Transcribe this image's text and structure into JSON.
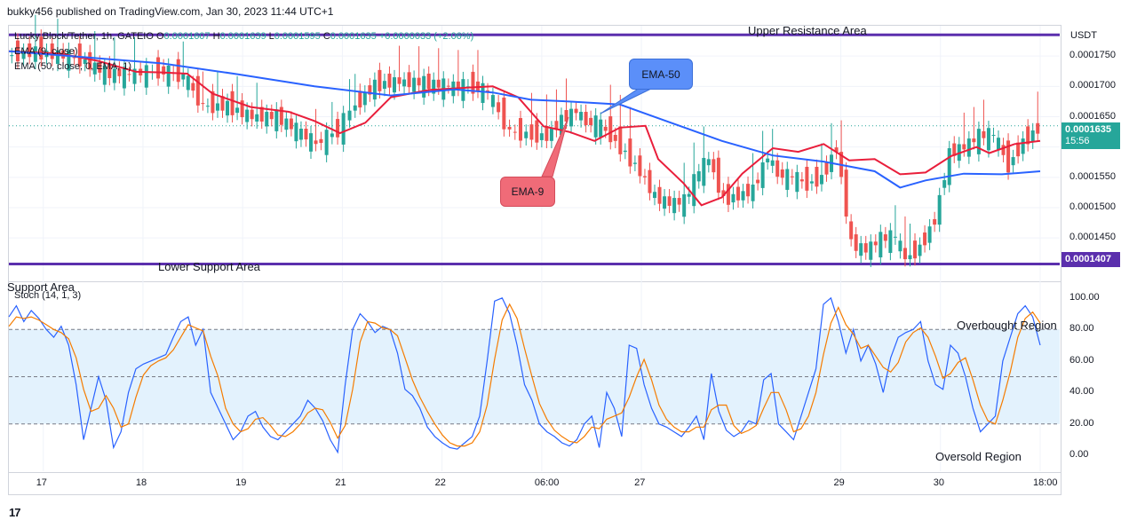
{
  "header": {
    "publisher": "bukky456 published on TradingView.com, Jan 30, 2023 11:44 UTC+1"
  },
  "legend": {
    "symbol": "Lucky Block/Tether, 1h, GATEIO",
    "open_label": "O",
    "open": "0.0001607",
    "high_label": "H",
    "high": "0.0001639",
    "low_label": "L",
    "low": "0.0001595",
    "close_label": "C",
    "close": "0.0001635",
    "change": "+0.0000033 (+2.06%)",
    "ema9": "EMA (9, close)",
    "ema50": "EMA (50, close, 0, EMA, 1)",
    "stoch": "Stoch (14, 1, 3)"
  },
  "annotations": {
    "upper": "Upper Resistance Area",
    "lower": "Lower Support Area",
    "support_cut": "Support Area",
    "ema50_callout": "EMA-50",
    "ema9_callout": "EMA-9",
    "overbought": "Overbought Region",
    "oversold": "Oversold Region"
  },
  "price_axis": {
    "currency": "USDT",
    "ticks": [
      "0.0001750",
      "0.0001700",
      "0.0001650",
      "0.0001600",
      "0.0001550",
      "0.0001500",
      "0.0001450"
    ],
    "tick_values": [
      0.000175,
      0.00017,
      0.000165,
      0.00016,
      0.000155,
      0.00015,
      0.000145
    ],
    "last_price": "0.0001635",
    "countdown": "15:56",
    "support_price": "0.0001407",
    "support_value": 0.0001407,
    "resistance_value": 0.0001785
  },
  "stoch_axis": {
    "ticks": [
      "100.00",
      "80.00",
      "60.00",
      "40.00",
      "20.00",
      "0.00"
    ],
    "tick_values": [
      100,
      80,
      60,
      40,
      20,
      0
    ],
    "overbought": 80,
    "middle": 50,
    "oversold": 20
  },
  "time_axis": {
    "labels": [
      "17",
      "18",
      "19",
      "21",
      "22",
      "06:00",
      "27",
      "29",
      "30",
      "18:00"
    ],
    "label_index": [
      10,
      39,
      68,
      97,
      126,
      155,
      184,
      242,
      271,
      300
    ]
  },
  "colors": {
    "up": "#26a69a",
    "down": "#ef5350",
    "ema9": "#e91e3b",
    "ema50": "#2962ff",
    "level": "#5b2fad",
    "stoch_k": "#2962ff",
    "stoch_d": "#f57c00",
    "band": "#e3f2fd",
    "callout_ema50": "#5b8ff9",
    "callout_ema9": "#f06b78"
  },
  "chart_data": [
    {
      "type": "candlestick",
      "title": "Lucky Block/Tether, 1h, GATEIO",
      "ylabel": "USDT",
      "ylim": [
        0.000138,
        0.00018
      ],
      "x_index_range": [
        0,
        310
      ],
      "last_close": 0.0001635,
      "levels": [
        {
          "name": "Upper Resistance Area",
          "value": 0.0001785
        },
        {
          "name": "Lower Support Area",
          "value": 0.0001407
        }
      ],
      "series": [
        {
          "name": "EMA (9, close)",
          "color": "#e91e3b",
          "points": [
            [
              0,
              0.0001758
            ],
            [
              20,
              0.0001754
            ],
            [
              35,
              0.0001742
            ],
            [
              50,
              0.0001724
            ],
            [
              60,
              0.0001723
            ],
            [
              70,
              0.0001721
            ],
            [
              80,
              0.0001688
            ],
            [
              95,
              0.0001666
            ],
            [
              110,
              0.0001658
            ],
            [
              120,
              0.0001643
            ],
            [
              130,
              0.0001623
            ],
            [
              140,
              0.000164
            ],
            [
              150,
              0.0001682
            ],
            [
              165,
              0.0001694
            ],
            [
              180,
              0.0001698
            ],
            [
              190,
              0.00017
            ],
            [
              200,
              0.0001682
            ],
            [
              210,
              0.0001634
            ],
            [
              220,
              0.0001625
            ],
            [
              230,
              0.000161
            ],
            [
              240,
              0.0001632
            ],
            [
              250,
              0.0001635
            ],
            [
              255,
              0.000158
            ],
            [
              265,
              0.000154
            ],
            [
              272,
              0.0001504
            ],
            [
              280,
              0.0001517
            ],
            [
              288,
              0.0001556
            ],
            [
              300,
              0.0001598
            ],
            [
              310,
              0.0001592
            ],
            [
              320,
              0.0001605
            ],
            [
              330,
              0.0001578
            ],
            [
              340,
              0.000158
            ],
            [
              350,
              0.0001555
            ],
            [
              360,
              0.0001558
            ],
            [
              370,
              0.0001585
            ],
            [
              380,
              0.00016
            ],
            [
              385,
              0.000159
            ],
            [
              395,
              0.0001605
            ],
            [
              405,
              0.000161
            ]
          ]
        },
        {
          "name": "EMA (50, close, 0, EMA, 1)",
          "color": "#2962ff",
          "points": [
            [
              0,
              0.0001758
            ],
            [
              30,
              0.0001748
            ],
            [
              60,
              0.0001738
            ],
            [
              90,
              0.000172
            ],
            [
              120,
              0.00017
            ],
            [
              150,
              0.0001685
            ],
            [
              175,
              0.0001695
            ],
            [
              190,
              0.000169
            ],
            [
              205,
              0.0001678
            ],
            [
              220,
              0.0001675
            ],
            [
              240,
              0.000167
            ],
            [
              260,
              0.000164
            ],
            [
              280,
              0.000161
            ],
            [
              300,
              0.0001586
            ],
            [
              320,
              0.0001576
            ],
            [
              340,
              0.000156
            ],
            [
              350,
              0.0001533
            ],
            [
              360,
              0.0001545
            ],
            [
              375,
              0.0001556
            ],
            [
              390,
              0.0001555
            ],
            [
              405,
              0.000156
            ]
          ]
        },
        {
          "name": "price",
          "color": "#26a69a",
          "points": [
            [
              0,
              0.000175
            ],
            [
              12,
              0.0001758
            ],
            [
              30,
              0.0001745
            ],
            [
              40,
              0.0001722
            ],
            [
              50,
              0.000172
            ],
            [
              62,
              0.0001725
            ],
            [
              72,
              0.0001718
            ],
            [
              80,
              0.0001668
            ],
            [
              90,
              0.0001668
            ],
            [
              100,
              0.000165
            ],
            [
              110,
              0.000165
            ],
            [
              118,
              0.0001628
            ],
            [
              126,
              0.0001605
            ],
            [
              135,
              0.0001628
            ],
            [
              140,
              0.000166
            ],
            [
              150,
              0.0001703
            ],
            [
              160,
              0.0001708
            ],
            [
              170,
              0.0001705
            ],
            [
              180,
              0.00017
            ],
            [
              190,
              0.00017
            ],
            [
              196,
              0.000169
            ],
            [
              205,
              0.0001625
            ],
            [
              214,
              0.000162
            ],
            [
              220,
              0.0001618
            ],
            [
              226,
              0.0001645
            ],
            [
              232,
              0.000166
            ],
            [
              236,
              0.000164
            ],
            [
              240,
              0.000164
            ],
            [
              246,
              0.000162
            ],
            [
              252,
              0.000159
            ],
            [
              258,
              0.000156
            ],
            [
              264,
              0.0001518
            ],
            [
              270,
              0.0001507
            ],
            [
              276,
              0.000151
            ],
            [
              282,
              0.000156
            ],
            [
              286,
              0.000158
            ],
            [
              292,
              0.0001515
            ],
            [
              298,
              0.000152
            ],
            [
              304,
              0.000153
            ],
            [
              310,
              0.0001585
            ],
            [
              314,
              0.0001555
            ],
            [
              320,
              0.000155
            ],
            [
              326,
              0.000154
            ],
            [
              332,
              0.000155
            ],
            [
              338,
              0.00016
            ],
            [
              344,
              0.000144
            ],
            [
              350,
              0.000143
            ],
            [
              356,
              0.0001448
            ],
            [
              362,
              0.0001452
            ],
            [
              366,
              0.0001415
            ],
            [
              372,
              0.0001435
            ],
            [
              378,
              0.000148
            ],
            [
              384,
              0.000159
            ],
            [
              390,
              0.00016
            ],
            [
              396,
              0.0001618
            ],
            [
              402,
              0.000162
            ],
            [
              408,
              0.000157
            ],
            [
              414,
              0.000161
            ],
            [
              420,
              0.000163
            ]
          ]
        }
      ]
    },
    {
      "type": "line",
      "title": "Stoch (14, 1, 3)",
      "ylim": [
        -10,
        110
      ],
      "x_index_range": [
        0,
        310
      ],
      "bands": [
        {
          "from": 20,
          "to": 80
        }
      ],
      "levels": [
        20,
        50,
        80
      ],
      "series": [
        {
          "name": "%K",
          "color": "#2962ff",
          "values": [
            88,
            95,
            85,
            92,
            87,
            80,
            75,
            82,
            70,
            45,
            10,
            30,
            50,
            35,
            5,
            15,
            40,
            55,
            58,
            60,
            62,
            64,
            75,
            85,
            88,
            70,
            80,
            40,
            30,
            20,
            10,
            15,
            25,
            28,
            18,
            12,
            10,
            15,
            20,
            25,
            35,
            30,
            22,
            10,
            2,
            45,
            80,
            90,
            85,
            78,
            82,
            80,
            65,
            42,
            38,
            30,
            18,
            12,
            8,
            5,
            4,
            8,
            12,
            25,
            60,
            98,
            100,
            90,
            70,
            45,
            35,
            20,
            15,
            12,
            8,
            6,
            10,
            20,
            25,
            5,
            40,
            30,
            12,
            70,
            68,
            45,
            30,
            20,
            18,
            15,
            12,
            18,
            25,
            10,
            52,
            28,
            16,
            12,
            15,
            22,
            20,
            48,
            52,
            20,
            15,
            10,
            25,
            40,
            55,
            96,
            100,
            85,
            65,
            80,
            60,
            70,
            58,
            40,
            62,
            75,
            78,
            80,
            85,
            60,
            45,
            42,
            70,
            65,
            50,
            30,
            15,
            20,
            25,
            60,
            75,
            90,
            95,
            88,
            70
          ]
        },
        {
          "name": "%D",
          "color": "#f57c00",
          "values": [
            82,
            88,
            87,
            88,
            86,
            83,
            80,
            78,
            74,
            62,
            42,
            28,
            30,
            38,
            30,
            18,
            20,
            37,
            51,
            57,
            60,
            62,
            67,
            75,
            83,
            81,
            79,
            63,
            50,
            30,
            20,
            15,
            17,
            23,
            24,
            19,
            13,
            12,
            15,
            20,
            27,
            30,
            29,
            21,
            11,
            19,
            42,
            72,
            85,
            84,
            81,
            80,
            76,
            62,
            48,
            37,
            28,
            20,
            13,
            8,
            6,
            6,
            8,
            15,
            32,
            61,
            86,
            96,
            87,
            68,
            50,
            33,
            23,
            16,
            12,
            9,
            8,
            12,
            18,
            17,
            23,
            25,
            27,
            37,
            50,
            61,
            48,
            32,
            23,
            18,
            15,
            15,
            18,
            18,
            29,
            32,
            32,
            19,
            14,
            16,
            19,
            30,
            40,
            40,
            29,
            15,
            17,
            25,
            40,
            64,
            84,
            94,
            83,
            77,
            68,
            70,
            63,
            56,
            53,
            59,
            72,
            78,
            81,
            75,
            63,
            49,
            52,
            59,
            62,
            48,
            32,
            22,
            20,
            35,
            53,
            75,
            87,
            91,
            84
          ]
        }
      ]
    }
  ]
}
